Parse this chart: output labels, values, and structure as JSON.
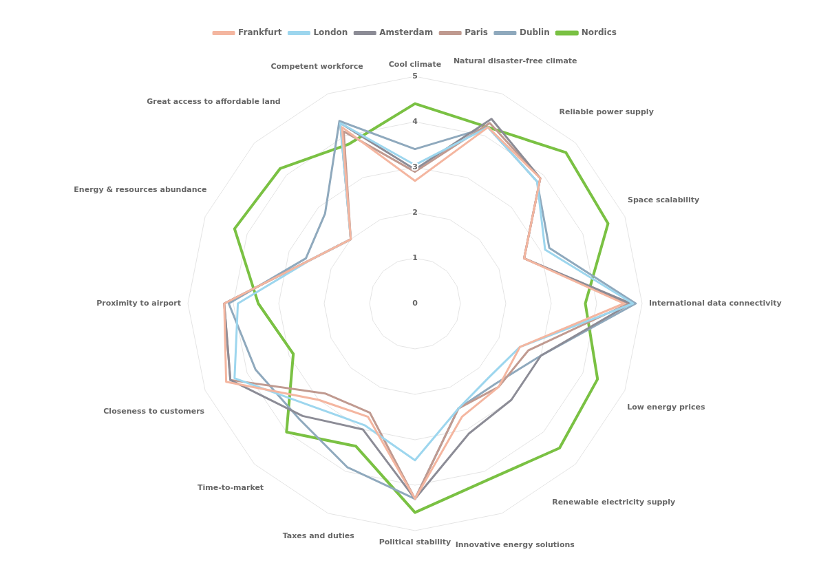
{
  "chart_data": {
    "type": "radar",
    "categories": [
      "Cool climate",
      "Natural disaster-free climate",
      "Reliable power supply",
      "Space scalability",
      "International data connectivity",
      "Low energy prices",
      "Renewable electricity supply",
      "Innovative energy solutions",
      "Political stability",
      "Taxes and duties",
      "Time-to-market",
      "Closeness to customers",
      "Proximity to airport",
      "Energy & resources abundance",
      "Great access to affordable land",
      "Competent workforce"
    ],
    "series": [
      {
        "name": "Frankfurt",
        "color": "#f4b6a0",
        "values": [
          2.7,
          4.2,
          3.9,
          2.6,
          4.6,
          2.5,
          2.6,
          2.7,
          4.3,
          2.7,
          3.0,
          4.5,
          4.2,
          2.5,
          2.0,
          4.2
        ]
      },
      {
        "name": "London",
        "color": "#9dd6ee",
        "values": [
          3.05,
          4.2,
          3.8,
          3.1,
          4.8,
          2.5,
          2.3,
          2.5,
          3.45,
          2.9,
          3.2,
          4.3,
          3.9,
          2.5,
          2.0,
          4.3
        ]
      },
      {
        "name": "Amsterdam",
        "color": "#8c8c96",
        "values": [
          2.95,
          4.4,
          3.9,
          2.6,
          4.75,
          3.0,
          3.0,
          3.1,
          4.3,
          3.0,
          3.5,
          4.4,
          4.2,
          2.5,
          2.0,
          4.3
        ]
      },
      {
        "name": "Paris",
        "color": "#c09a90",
        "values": [
          2.9,
          4.3,
          3.9,
          2.6,
          4.7,
          2.7,
          2.6,
          2.5,
          4.3,
          2.6,
          2.8,
          4.4,
          4.2,
          2.5,
          2.0,
          4.1
        ]
      },
      {
        "name": "Dublin",
        "color": "#8fa9bd",
        "values": [
          3.4,
          4.2,
          3.8,
          3.2,
          4.86,
          3.0,
          2.5,
          2.5,
          4.3,
          3.9,
          3.6,
          3.8,
          4.1,
          2.6,
          2.8,
          4.35
        ]
      },
      {
        "name": "Nordics",
        "color": "#7ac143",
        "values": [
          4.4,
          4.2,
          4.7,
          4.6,
          3.75,
          4.35,
          4.5,
          4.2,
          4.6,
          3.4,
          4.0,
          2.9,
          3.45,
          4.3,
          4.2,
          3.8
        ]
      }
    ],
    "ylim": [
      0,
      5
    ],
    "yticks": [
      0,
      1,
      2,
      3,
      4,
      5
    ],
    "grid": true,
    "legend": "top",
    "marker": "none"
  }
}
